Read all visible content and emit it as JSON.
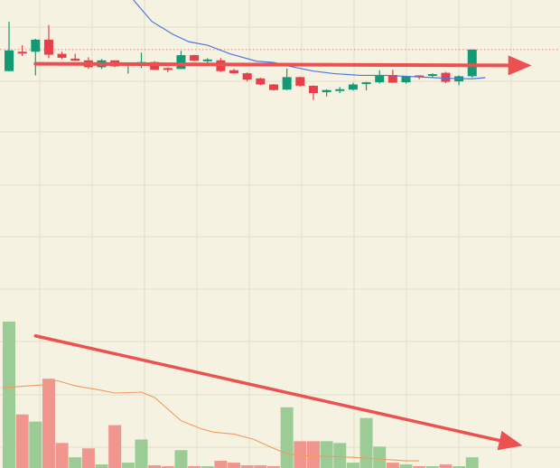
{
  "colors": {
    "background": "#f6f2e2",
    "grid": "#e3ddc8",
    "up": "#129a74",
    "down": "#e8404a",
    "volume_up": "#9ccc95",
    "volume_down": "#f1968e",
    "ma_price": "#4a78e0",
    "ma_volume": "#f29a5e",
    "arrow": "#ec5050",
    "ref_line": "#e08080"
  },
  "chart_data": [
    {
      "type": "candlestick",
      "title": "",
      "xlabel": "",
      "ylabel": "",
      "ylim": [
        0,
        520
      ],
      "grid": true,
      "candles": [
        {
          "o": 355,
          "h": 470,
          "l": 355,
          "c": 403,
          "dir": "up"
        },
        {
          "o": 400,
          "h": 415,
          "l": 390,
          "c": 398,
          "dir": "down"
        },
        {
          "o": 400,
          "h": 430,
          "l": 345,
          "c": 428,
          "dir": "up"
        },
        {
          "o": 428,
          "h": 462,
          "l": 385,
          "c": 393,
          "dir": "down"
        },
        {
          "o": 395,
          "h": 400,
          "l": 383,
          "c": 386,
          "dir": "down"
        },
        {
          "o": 384,
          "h": 395,
          "l": 379,
          "c": 379,
          "dir": "down"
        },
        {
          "o": 380,
          "h": 387,
          "l": 360,
          "c": 364,
          "dir": "down"
        },
        {
          "o": 364,
          "h": 383,
          "l": 360,
          "c": 380,
          "dir": "up"
        },
        {
          "o": 380,
          "h": 378,
          "l": 364,
          "c": 366,
          "dir": "down"
        },
        {
          "o": 372,
          "h": 375,
          "l": 349,
          "c": 371,
          "dir": "up"
        },
        {
          "o": 368,
          "h": 398,
          "l": 362,
          "c": 376,
          "dir": "up"
        },
        {
          "o": 376,
          "h": 378,
          "l": 358,
          "c": 358,
          "dir": "down"
        },
        {
          "o": 362,
          "h": 364,
          "l": 352,
          "c": 362,
          "dir": "down"
        },
        {
          "o": 360,
          "h": 402,
          "l": 360,
          "c": 392,
          "dir": "up"
        },
        {
          "o": 392,
          "h": 393,
          "l": 378,
          "c": 379,
          "dir": "down"
        },
        {
          "o": 379,
          "h": 385,
          "l": 374,
          "c": 382,
          "dir": "up"
        },
        {
          "o": 380,
          "h": 385,
          "l": 353,
          "c": 355,
          "dir": "down"
        },
        {
          "o": 357,
          "h": 360,
          "l": 349,
          "c": 350,
          "dir": "down"
        },
        {
          "o": 350,
          "h": 352,
          "l": 331,
          "c": 335,
          "dir": "down"
        },
        {
          "o": 338,
          "h": 340,
          "l": 322,
          "c": 324,
          "dir": "down"
        },
        {
          "o": 324,
          "h": 325,
          "l": 310,
          "c": 311,
          "dir": "down"
        },
        {
          "o": 312,
          "h": 361,
          "l": 311,
          "c": 341,
          "dir": "up"
        },
        {
          "o": 341,
          "h": 342,
          "l": 319,
          "c": 321,
          "dir": "down"
        },
        {
          "o": 321,
          "h": 322,
          "l": 288,
          "c": 304,
          "dir": "down"
        },
        {
          "o": 306,
          "h": 313,
          "l": 296,
          "c": 311,
          "dir": "up"
        },
        {
          "o": 310,
          "h": 318,
          "l": 304,
          "c": 313,
          "dir": "up"
        },
        {
          "o": 312,
          "h": 328,
          "l": 310,
          "c": 324,
          "dir": "up"
        },
        {
          "o": 325,
          "h": 330,
          "l": 310,
          "c": 329,
          "dir": "up"
        },
        {
          "o": 329,
          "h": 357,
          "l": 326,
          "c": 346,
          "dir": "up"
        },
        {
          "o": 346,
          "h": 358,
          "l": 328,
          "c": 328,
          "dir": "down"
        },
        {
          "o": 329,
          "h": 343,
          "l": 326,
          "c": 343,
          "dir": "up"
        },
        {
          "o": 343,
          "h": 345,
          "l": 336,
          "c": 345,
          "dir": "down"
        },
        {
          "o": 345,
          "h": 350,
          "l": 340,
          "c": 348,
          "dir": "up"
        },
        {
          "o": 351,
          "h": 353,
          "l": 327,
          "c": 330,
          "dir": "down"
        },
        {
          "o": 331,
          "h": 345,
          "l": 322,
          "c": 343,
          "dir": "up"
        },
        {
          "o": 343,
          "h": 405,
          "l": 340,
          "c": 405,
          "dir": "up"
        }
      ],
      "moving_average": [
        {
          "i": 9.4,
          "v": 520
        },
        {
          "i": 10.8,
          "v": 470
        },
        {
          "i": 12.4,
          "v": 440
        },
        {
          "i": 13.6,
          "v": 423
        },
        {
          "i": 15.0,
          "v": 415
        },
        {
          "i": 16.7,
          "v": 395
        },
        {
          "i": 18.7,
          "v": 378
        },
        {
          "i": 20.0,
          "v": 375
        },
        {
          "i": 21.4,
          "v": 365
        },
        {
          "i": 23.0,
          "v": 355
        },
        {
          "i": 24.6,
          "v": 349
        },
        {
          "i": 26.6,
          "v": 345
        },
        {
          "i": 28.5,
          "v": 345
        },
        {
          "i": 30.0,
          "v": 343
        },
        {
          "i": 32.0,
          "v": 340
        },
        {
          "i": 33.5,
          "v": 338
        },
        {
          "i": 35.0,
          "v": 337
        },
        {
          "i": 36.0,
          "v": 340
        }
      ],
      "reference_level": 405
    },
    {
      "type": "bar",
      "title": "",
      "xlabel": "",
      "ylabel": "",
      "ylim": [
        0,
        170
      ],
      "grid": true,
      "volumes": [
        {
          "v": 164,
          "dir": "up"
        },
        {
          "v": 60,
          "dir": "down"
        },
        {
          "v": 52,
          "dir": "up"
        },
        {
          "v": 100,
          "dir": "down"
        },
        {
          "v": 28,
          "dir": "down"
        },
        {
          "v": 12,
          "dir": "up"
        },
        {
          "v": 22,
          "dir": "down"
        },
        {
          "v": 4,
          "dir": "up"
        },
        {
          "v": 48,
          "dir": "down"
        },
        {
          "v": 6,
          "dir": "up"
        },
        {
          "v": 32,
          "dir": "up"
        },
        {
          "v": 3,
          "dir": "down"
        },
        {
          "v": 2,
          "dir": "down"
        },
        {
          "v": 20,
          "dir": "up"
        },
        {
          "v": 2,
          "dir": "down"
        },
        {
          "v": 2,
          "dir": "up"
        },
        {
          "v": 8,
          "dir": "down"
        },
        {
          "v": 6,
          "dir": "down"
        },
        {
          "v": 3,
          "dir": "down"
        },
        {
          "v": 3,
          "dir": "down"
        },
        {
          "v": 2,
          "dir": "down"
        },
        {
          "v": 68,
          "dir": "up"
        },
        {
          "v": 30,
          "dir": "down"
        },
        {
          "v": 30,
          "dir": "down"
        },
        {
          "v": 30,
          "dir": "up"
        },
        {
          "v": 28,
          "dir": "up"
        },
        {
          "v": 6,
          "dir": "up"
        },
        {
          "v": 56,
          "dir": "up"
        },
        {
          "v": 24,
          "dir": "up"
        },
        {
          "v": 6,
          "dir": "down"
        },
        {
          "v": 4,
          "dir": "up"
        },
        {
          "v": 2,
          "dir": "down"
        },
        {
          "v": 2,
          "dir": "up"
        },
        {
          "v": 4,
          "dir": "down"
        },
        {
          "v": 2,
          "dir": "up"
        },
        {
          "v": 12,
          "dir": "up"
        }
      ],
      "moving_average": [
        {
          "i": -0.5,
          "v": 90
        },
        {
          "i": 2.5,
          "v": 93
        },
        {
          "i": 3.6,
          "v": 98
        },
        {
          "i": 5.0,
          "v": 92
        },
        {
          "i": 7.0,
          "v": 87
        },
        {
          "i": 8.0,
          "v": 84
        },
        {
          "i": 10.0,
          "v": 85
        },
        {
          "i": 11.0,
          "v": 79
        },
        {
          "i": 13.0,
          "v": 53
        },
        {
          "i": 14.5,
          "v": 44
        },
        {
          "i": 15.5,
          "v": 40
        },
        {
          "i": 17.0,
          "v": 38
        },
        {
          "i": 18.5,
          "v": 32
        },
        {
          "i": 20.0,
          "v": 22
        },
        {
          "i": 21.0,
          "v": 16
        },
        {
          "i": 22.0,
          "v": 14
        },
        {
          "i": 24.0,
          "v": 13
        },
        {
          "i": 26.0,
          "v": 12
        },
        {
          "i": 28.0,
          "v": 10
        },
        {
          "i": 30.0,
          "v": 8
        },
        {
          "i": 31.0,
          "v": 8
        }
      ]
    }
  ],
  "annotations": [
    {
      "name": "price-trend-arrow",
      "from": {
        "i": 2,
        "v": 372
      },
      "to": {
        "i": 39.5,
        "v": 368
      },
      "panel": 0
    },
    {
      "name": "volume-trend-arrow",
      "from": {
        "i": 2,
        "v": 148
      },
      "to": {
        "i": 38.8,
        "v": 25
      },
      "panel": 1
    }
  ]
}
